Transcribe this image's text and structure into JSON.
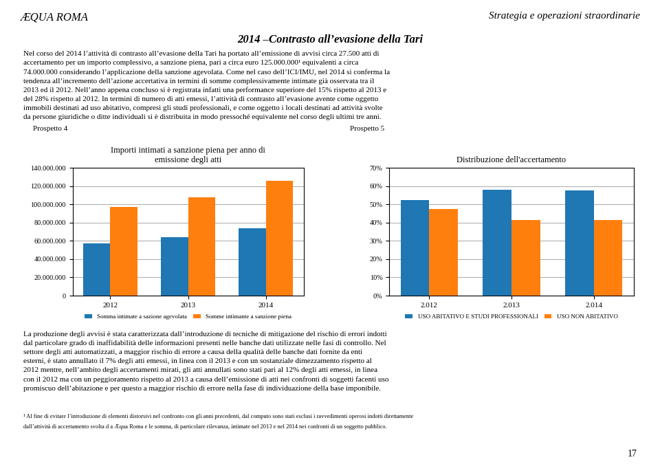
{
  "title": "2014 –Contrasto all’evasione della Tari",
  "annotations": [
    [
      "Strategia e operazioni straordinarie"
    ],
    [
      "ÆQUA ROMA"
    ],
    [
      "Nel corso del 2014 l’attività di contrasto all’evasione della Tari ha portato all’emissione di avvisi circa 27.500 atti di",
      "accertamento per un importo complessivo, a sanzione piena, pari a circa euro 125.000.000¹ equivalenti a circa",
      "74.000.000 considerando l’applicazione della sanzione agevolata. Come nel caso dell’ICI/IMU, nel 2014 si conferma la",
      "tendenza all’incremento dell’azione accertativa in termini di somme complessivamente intimate già osservata tra il",
      "2013 ed il 2012. Nell’anno appena concluso si è registrata infatti una performance superiore del 15% rispetto al 2013 e",
      "del 28% rispetto al 2012. In termini di numero di atti emessi, l’attività di contrasto all’evasione avente come oggetto",
      "immobili destinati ad uso abitativo, compresi gli studi professionali, e come oggetto i locali destinati ad attività svolte",
      "da persone giuridiche o ditte individuali si è distribuita in modo pressoché equivalente nel corso degli ultimi tre anni."
    ],
    [
      "La produzione degli avvisi è stata caratterizzata dall’introduzione di tecniche di mitigazione del rischio di errori indotti",
      "dal particolare grado di inaffidabilità delle informazioni presenti nelle banche dati utilizzate nelle fasi di controllo. Nel",
      "settore degli atti automatizzati, a maggior rischio di errore a causa della qualità delle banche dati fornite da enti",
      "esterni, è stato annullato il 7% degli atti emessi, in linea con il 2013 e con un sostanziale dimezzamento rispetto al",
      "2012 mentre, nell’ambito degli accertamenti mirati, gli atti annullati sono stati pari al 12% degli atti emessi, in linea",
      "con il 2012 ma con un peggioramento rispetto al 2013 a causa dell’emissione di atti nei confronti di soggetti facenti uso",
      "promiscuo dell’abitazione e per questo a maggior rischio di errore nella fase di individuazione della base imponibile."
    ],
    [
      "¹ Al fine di evitare l’introduzione di elementi distorsivi nel confronto con gli anni precedenti, dal computo sono stati esclusi i ravvedimenti operosi indotti direttamente",
      "dall’attività di accertamento svolta d a Æqua Roma e le somma, di particolare rilevanza, intimate nel 2013 e nel 2014 nei confronti di un soggetto pubblico."
    ],
    [
      "17"
    ]
  ],
  "chart_data": [
    {
      "type": "bar",
      "title": "Importi intimati a sanzione piena per anno di\nemissione degli atti",
      "annotations": [
        "Prospetto 4"
      ],
      "categories": [
        "2012",
        "2013",
        "2014"
      ],
      "series": [
        {
          "name": "Somma intimate a sazione agevolata",
          "values": [
            57000000,
            64000000,
            74000000
          ]
        },
        {
          "name": "Somme intimante a sanzione piena",
          "values": [
            97000000,
            108000000,
            126000000
          ]
        }
      ],
      "ylim": [
        0,
        140000000
      ],
      "yticks": [
        0,
        {
          "value": 20000000,
          "label": "20.000.000"
        },
        {
          "value": 40000000,
          "label": "40.000.000"
        },
        {
          "value": 60000000,
          "label": "60.000.000"
        },
        {
          "value": 80000000,
          "label": "80.000.000"
        },
        {
          "value": 100000000,
          "label": "100.000.000"
        },
        {
          "value": 120000000,
          "label": "120.000.000"
        },
        {
          "value": 140000000,
          "label": "140.000.000"
        }
      ],
      "grid": true,
      "legend": "upper center"
    },
    {
      "type": "bar",
      "title": "Distribuzione dell'accertamento",
      "annotations": [
        "Prospetto 5"
      ],
      "categories": [
        "2.012",
        "2.013",
        "2.014"
      ],
      "series": [
        {
          "name": "USO ABITATIVO E STUDI PROFESSIONALI",
          "values": [
            0.525,
            0.58,
            0.575
          ]
        },
        {
          "name": "USO NON ABITATIVO",
          "values": [
            0.475,
            0.415,
            0.415
          ]
        }
      ],
      "ylim": [
        0,
        0.7
      ],
      "yticks": [
        {
          "value": 0.0,
          "label": "0%"
        },
        {
          "value": 0.1,
          "label": "10%"
        },
        {
          "value": 0.2,
          "label": "20%"
        },
        {
          "value": 0.3,
          "label": "30%"
        },
        {
          "value": 0.4,
          "label": "40%"
        },
        {
          "value": 0.5,
          "label": "50%"
        },
        {
          "value": 0.6,
          "label": "60%"
        },
        {
          "value": 0.7,
          "label": "70%"
        }
      ],
      "grid": true,
      "legend": "upper center"
    }
  ]
}
